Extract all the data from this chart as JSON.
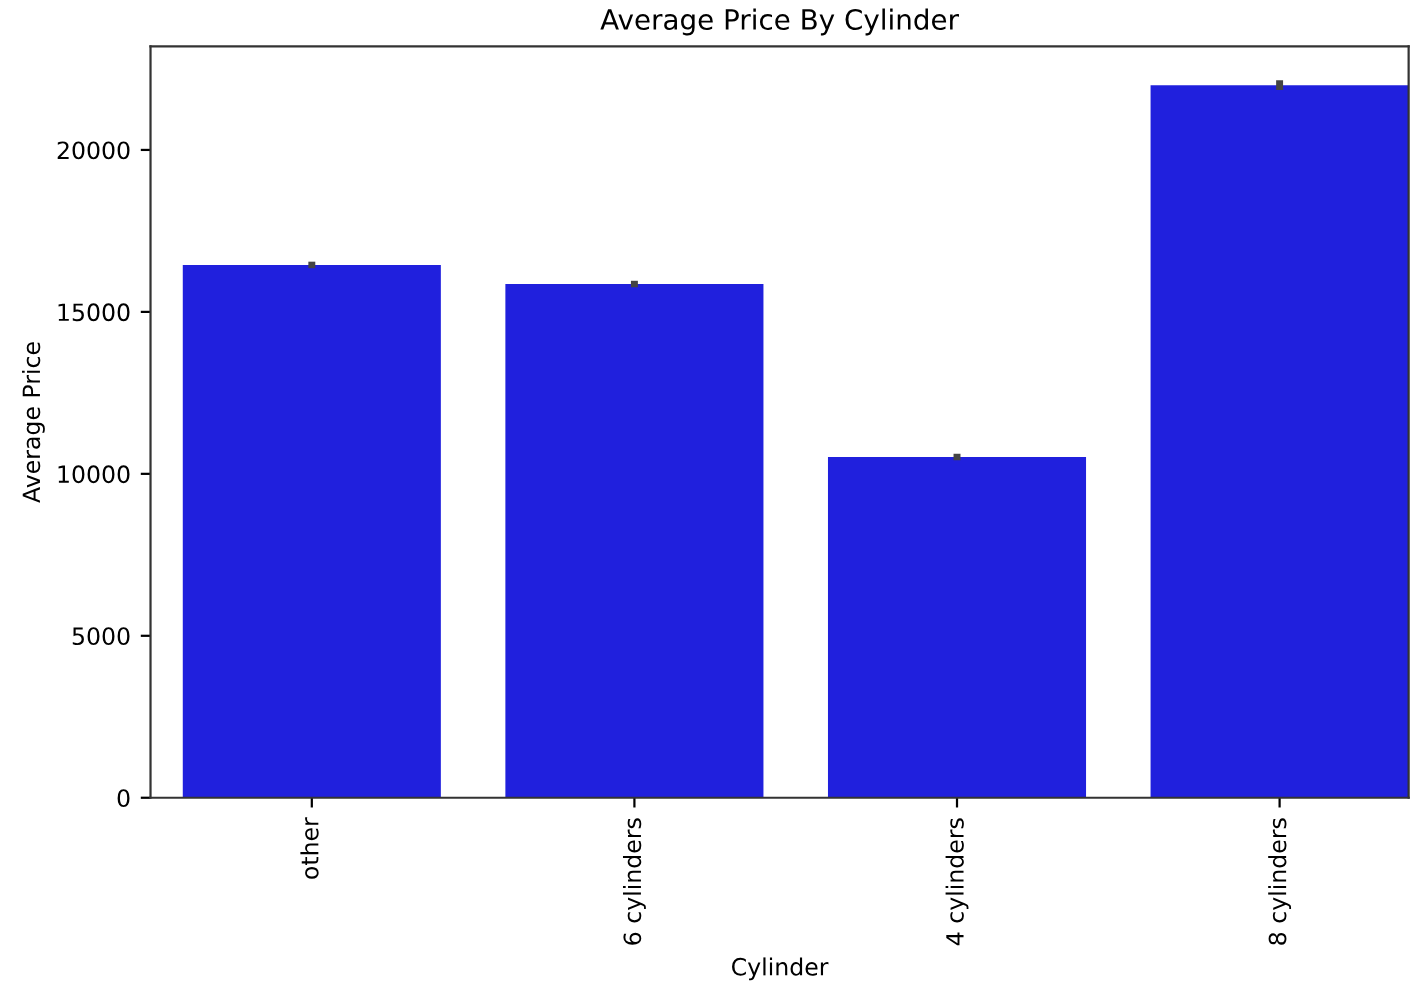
{
  "chart_data": {
    "type": "bar",
    "title": "Average Price By Cylinder",
    "xlabel": "Cylinder",
    "ylabel": "Average Price",
    "categories": [
      "other",
      "6 cylinders",
      "4 cylinders",
      "8 cylinders"
    ],
    "values": [
      16450,
      15860,
      10520,
      22000
    ],
    "errors": [
      100,
      100,
      100,
      150
    ],
    "color": "#2020dd",
    "ylim": [
      0,
      23200
    ],
    "yticks": [
      0,
      5000,
      10000,
      15000,
      20000
    ],
    "grid": false,
    "legend": false
  }
}
